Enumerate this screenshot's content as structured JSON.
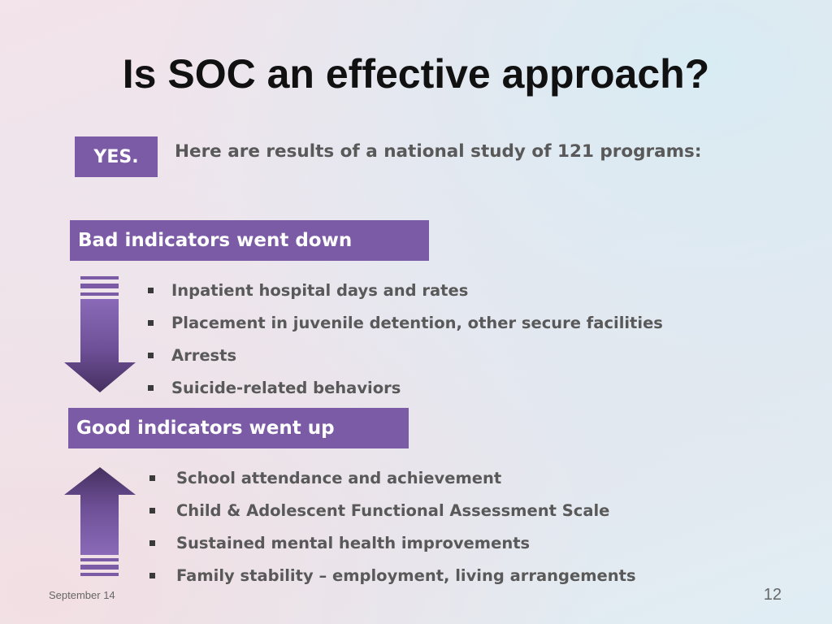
{
  "slide": {
    "title": "Is SOC an effective approach?",
    "answer_badge": "YES.",
    "intro": "Here are results of a national study of 121 programs:"
  },
  "bad_section": {
    "header": "Bad indicators went down",
    "items": [
      "Inpatient hospital days and rates",
      "Placement in juvenile detention, other secure facilities",
      "Arrests",
      "Suicide-related behaviors"
    ]
  },
  "good_section": {
    "header": "Good indicators went up",
    "items": [
      "School attendance and achievement",
      "Child & Adolescent Functional Assessment Scale",
      "Sustained mental health improvements",
      "Family stability – employment, living arrangements"
    ]
  },
  "footer": {
    "date": "September 14",
    "page_number": "12"
  },
  "colors": {
    "accent": "#7b5aa6",
    "arrow_dark": "#4a3466",
    "text_gray": "#595959"
  },
  "icons": {
    "down_arrow": "down-arrow-icon",
    "up_arrow": "up-arrow-icon",
    "bullet": "square-bullet-icon"
  }
}
